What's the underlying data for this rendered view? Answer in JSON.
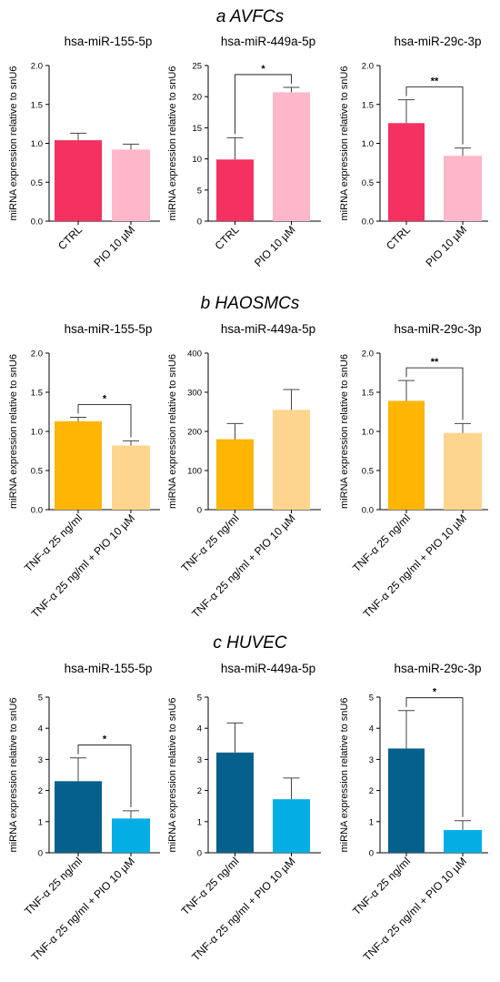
{
  "sections": [
    {
      "title": "a AVFCs",
      "charts": [
        {
          "type": "bar",
          "title": "hsa-miR-155-5p",
          "ylabel": "miRNA expression relative to snU6",
          "ylim": [
            0,
            2.0
          ],
          "yticks": [
            "0.0",
            "0.5",
            "1.0",
            "1.5",
            "2.0"
          ],
          "categories": [
            "CTRL",
            "PIO 10 µM"
          ],
          "values": [
            1.04,
            0.92
          ],
          "errors": [
            0.09,
            0.07
          ],
          "colors": [
            "#f43160",
            "#feb6c9"
          ],
          "significance": null
        },
        {
          "type": "bar",
          "title": "hsa-miR-449a-5p",
          "ylabel": "miRNA expression relative to snU6",
          "ylim": [
            0,
            25
          ],
          "yticks": [
            "0",
            "5",
            "10",
            "15",
            "20",
            "25"
          ],
          "categories": [
            "CTRL",
            "PIO 10 µM"
          ],
          "values": [
            9.9,
            20.7
          ],
          "errors": [
            3.5,
            0.8
          ],
          "colors": [
            "#f43160",
            "#feb6c9"
          ],
          "significance": "*"
        },
        {
          "type": "bar",
          "title": "hsa-miR-29c-3p",
          "ylabel": "miRNA expression relative to snU6",
          "ylim": [
            0,
            2.0
          ],
          "yticks": [
            "0.0",
            "0.5",
            "1.0",
            "1.5",
            "2.0"
          ],
          "categories": [
            "CTRL",
            "PIO 10 µM"
          ],
          "values": [
            1.26,
            0.84
          ],
          "errors": [
            0.3,
            0.1
          ],
          "colors": [
            "#f43160",
            "#feb6c9"
          ],
          "significance": "**"
        }
      ]
    },
    {
      "title": "b HAOSMCs",
      "charts": [
        {
          "type": "bar",
          "title": "hsa-miR-155-5p",
          "ylabel": "miRNA expression relative to snU6",
          "ylim": [
            0,
            2.0
          ],
          "yticks": [
            "0.0",
            "0.5",
            "1.0",
            "1.5",
            "2.0"
          ],
          "categories": [
            "TNF-α 25 ng/ml",
            "TNF-α 25 ng/ml + PIO 10 µM"
          ],
          "values": [
            1.13,
            0.82
          ],
          "errors": [
            0.05,
            0.06
          ],
          "colors": [
            "#feb504",
            "#fed58e"
          ],
          "significance": "*"
        },
        {
          "type": "bar",
          "title": "hsa-miR-449a-5p",
          "ylabel": "miRNA expression relative to snU6",
          "ylim": [
            0,
            400
          ],
          "yticks": [
            "0",
            "100",
            "200",
            "300",
            "400"
          ],
          "categories": [
            "TNF-α 25 ng/ml",
            "TNF-α 25 ng/ml + PIO 10 µM"
          ],
          "values": [
            180,
            255
          ],
          "errors": [
            40,
            52
          ],
          "colors": [
            "#feb504",
            "#fed58e"
          ],
          "significance": null
        },
        {
          "type": "bar",
          "title": "hsa-miR-29c-3p",
          "ylabel": "miRNA expression relative to snU6",
          "ylim": [
            0,
            2.0
          ],
          "yticks": [
            "0.0",
            "0.5",
            "1.0",
            "1.5",
            "2.0"
          ],
          "categories": [
            "TNF-α 25 ng/ml",
            "TNF-α 25 ng/ml + PIO 10 µM"
          ],
          "values": [
            1.39,
            0.98
          ],
          "errors": [
            0.26,
            0.12
          ],
          "colors": [
            "#feb504",
            "#fed58e"
          ],
          "significance": "**"
        }
      ]
    },
    {
      "title": "c HUVEC",
      "charts": [
        {
          "type": "bar",
          "title": "hsa-miR-155-5p",
          "ylabel": "miRNA expression relative to snU6",
          "ylim": [
            0,
            5
          ],
          "yticks": [
            "0",
            "1",
            "2",
            "3",
            "4",
            "5"
          ],
          "categories": [
            "TNF-α 25 ng/ml",
            "TNF-α 25 ng/ml + PIO 10 µM"
          ],
          "values": [
            2.3,
            1.1
          ],
          "errors": [
            0.75,
            0.25
          ],
          "colors": [
            "#05618c",
            "#04aee4"
          ],
          "significance": "*"
        },
        {
          "type": "bar",
          "title": "hsa-miR-449a-5p",
          "ylabel": "miRNA expression relative to snU6",
          "ylim": [
            0,
            5
          ],
          "yticks": [
            "0",
            "1",
            "2",
            "3",
            "4",
            "5"
          ],
          "categories": [
            "TNF-α 25 ng/ml",
            "TNF-α 25 ng/ml + PIO 10 µM"
          ],
          "values": [
            3.22,
            1.72
          ],
          "errors": [
            0.95,
            0.68
          ],
          "colors": [
            "#05618c",
            "#04aee4"
          ],
          "significance": null
        },
        {
          "type": "bar",
          "title": "hsa-miR-29c-3p",
          "ylabel": "miRNA expression relative to snU6",
          "ylim": [
            0,
            5
          ],
          "yticks": [
            "0",
            "1",
            "2",
            "3",
            "4",
            "5"
          ],
          "categories": [
            "TNF-α 25 ng/ml",
            "TNF-α 25 ng/ml + PIO 10 µM"
          ],
          "values": [
            3.35,
            0.73
          ],
          "errors": [
            1.22,
            0.3
          ],
          "colors": [
            "#05618c",
            "#04aee4"
          ],
          "significance": "*"
        }
      ]
    }
  ],
  "chart_data": [
    {
      "type": "bar",
      "panel": "a AVFCs",
      "title": "hsa-miR-155-5p",
      "ylabel": "miRNA expression relative to snU6",
      "categories": [
        "CTRL",
        "PIO 10 µM"
      ],
      "values": [
        1.04,
        0.92
      ],
      "errors": [
        0.09,
        0.07
      ],
      "ylim": [
        0,
        2.0
      ]
    },
    {
      "type": "bar",
      "panel": "a AVFCs",
      "title": "hsa-miR-449a-5p",
      "ylabel": "miRNA expression relative to snU6",
      "categories": [
        "CTRL",
        "PIO 10 µM"
      ],
      "values": [
        9.9,
        20.7
      ],
      "errors": [
        3.5,
        0.8
      ],
      "ylim": [
        0,
        25
      ],
      "significance": "*"
    },
    {
      "type": "bar",
      "panel": "a AVFCs",
      "title": "hsa-miR-29c-3p",
      "ylabel": "miRNA expression relative to snU6",
      "categories": [
        "CTRL",
        "PIO 10 µM"
      ],
      "values": [
        1.26,
        0.84
      ],
      "errors": [
        0.3,
        0.1
      ],
      "ylim": [
        0,
        2.0
      ],
      "significance": "**"
    },
    {
      "type": "bar",
      "panel": "b HAOSMCs",
      "title": "hsa-miR-155-5p",
      "ylabel": "miRNA expression relative to snU6",
      "categories": [
        "TNF-α 25 ng/ml",
        "TNF-α 25 ng/ml + PIO 10 µM"
      ],
      "values": [
        1.13,
        0.82
      ],
      "errors": [
        0.05,
        0.06
      ],
      "ylim": [
        0,
        2.0
      ],
      "significance": "*"
    },
    {
      "type": "bar",
      "panel": "b HAOSMCs",
      "title": "hsa-miR-449a-5p",
      "ylabel": "miRNA expression relative to snU6",
      "categories": [
        "TNF-α 25 ng/ml",
        "TNF-α 25 ng/ml + PIO 10 µM"
      ],
      "values": [
        180,
        255
      ],
      "errors": [
        40,
        52
      ],
      "ylim": [
        0,
        400
      ]
    },
    {
      "type": "bar",
      "panel": "b HAOSMCs",
      "title": "hsa-miR-29c-3p",
      "ylabel": "miRNA expression relative to snU6",
      "categories": [
        "TNF-α 25 ng/ml",
        "TNF-α 25 ng/ml + PIO 10 µM"
      ],
      "values": [
        1.39,
        0.98
      ],
      "errors": [
        0.26,
        0.12
      ],
      "ylim": [
        0,
        2.0
      ],
      "significance": "**"
    },
    {
      "type": "bar",
      "panel": "c HUVEC",
      "title": "hsa-miR-155-5p",
      "ylabel": "miRNA expression relative to snU6",
      "categories": [
        "TNF-α 25 ng/ml",
        "TNF-α 25 ng/ml + PIO 10 µM"
      ],
      "values": [
        2.3,
        1.1
      ],
      "errors": [
        0.75,
        0.25
      ],
      "ylim": [
        0,
        5
      ],
      "significance": "*"
    },
    {
      "type": "bar",
      "panel": "c HUVEC",
      "title": "hsa-miR-449a-5p",
      "ylabel": "miRNA expression relative to snU6",
      "categories": [
        "TNF-α 25 ng/ml",
        "TNF-α 25 ng/ml + PIO 10 µM"
      ],
      "values": [
        3.22,
        1.72
      ],
      "errors": [
        0.95,
        0.68
      ],
      "ylim": [
        0,
        5
      ]
    },
    {
      "type": "bar",
      "panel": "c HUVEC",
      "title": "hsa-miR-29c-3p",
      "ylabel": "miRNA expression relative to snU6",
      "categories": [
        "TNF-α 25 ng/ml",
        "TNF-α 25 ng/ml + PIO 10 µM"
      ],
      "values": [
        3.35,
        0.73
      ],
      "errors": [
        1.22,
        0.3
      ],
      "ylim": [
        0,
        5
      ],
      "significance": "*"
    }
  ]
}
